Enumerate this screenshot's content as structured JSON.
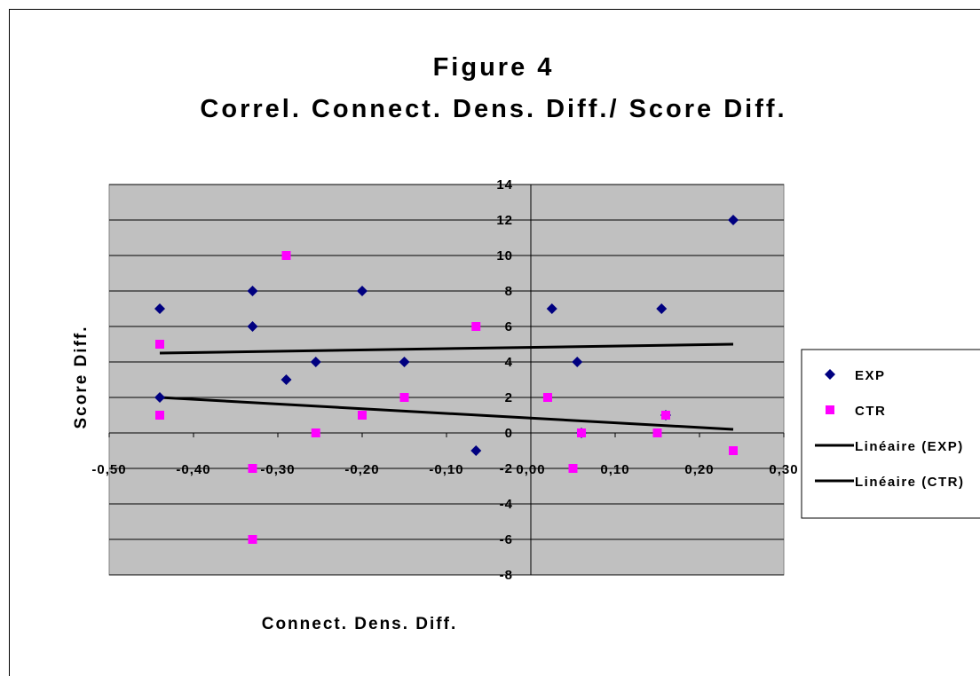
{
  "colors": {
    "plot_bg": "#c0c0c0",
    "exp": "#000080",
    "ctr": "#ff00ff",
    "trend": "#000000"
  },
  "chart_data": {
    "type": "scatter",
    "title": "Figure 4",
    "subtitle": "Correl. Connect. Dens. Diff./ Score Diff.",
    "xlabel": "Connect. Dens. Diff.",
    "ylabel": "Score Diff.",
    "xlim": [
      -0.5,
      0.3
    ],
    "ylim": [
      -8,
      14
    ],
    "grid": "horizontal",
    "legend_position": "right",
    "x_ticks": [
      -0.5,
      -0.4,
      -0.3,
      -0.2,
      -0.1,
      0.0,
      0.1,
      0.2,
      0.3
    ],
    "x_tick_labels": [
      "-0,50",
      "-0,40",
      "-0,30",
      "-0,20",
      "-0,10",
      "0,00",
      "0,10",
      "0,20",
      "0,30"
    ],
    "y_ticks": [
      -8,
      -6,
      -4,
      -2,
      0,
      2,
      4,
      6,
      8,
      10,
      12,
      14
    ],
    "y_tick_labels": [
      "-8",
      "-6",
      "-4",
      "-2",
      "0",
      "2",
      "4",
      "6",
      "8",
      "10",
      "12",
      "14"
    ],
    "series": [
      {
        "name": "EXP",
        "marker": "diamond",
        "points": [
          [
            -0.44,
            7
          ],
          [
            -0.44,
            2
          ],
          [
            -0.33,
            8
          ],
          [
            -0.33,
            6
          ],
          [
            -0.29,
            3
          ],
          [
            -0.255,
            4
          ],
          [
            -0.2,
            8
          ],
          [
            -0.15,
            4
          ],
          [
            -0.065,
            -1
          ],
          [
            0.025,
            7
          ],
          [
            0.055,
            4
          ],
          [
            0.06,
            0
          ],
          [
            0.155,
            7
          ],
          [
            0.16,
            1
          ],
          [
            0.24,
            12
          ]
        ]
      },
      {
        "name": "CTR",
        "marker": "square",
        "points": [
          [
            -0.44,
            5
          ],
          [
            -0.44,
            1
          ],
          [
            -0.33,
            -2
          ],
          [
            -0.33,
            -6
          ],
          [
            -0.29,
            10
          ],
          [
            -0.255,
            0
          ],
          [
            -0.2,
            1
          ],
          [
            -0.15,
            2
          ],
          [
            -0.065,
            6
          ],
          [
            0.02,
            2
          ],
          [
            0.05,
            -2
          ],
          [
            0.06,
            0
          ],
          [
            0.15,
            0
          ],
          [
            0.16,
            1
          ],
          [
            0.24,
            -1
          ]
        ]
      }
    ],
    "trendlines": [
      {
        "name": "Linéaire (EXP)",
        "from": [
          -0.44,
          4.5
        ],
        "to": [
          0.24,
          5.0
        ]
      },
      {
        "name": "Linéaire (CTR)",
        "from": [
          -0.44,
          2.0
        ],
        "to": [
          0.24,
          0.2
        ]
      }
    ]
  }
}
